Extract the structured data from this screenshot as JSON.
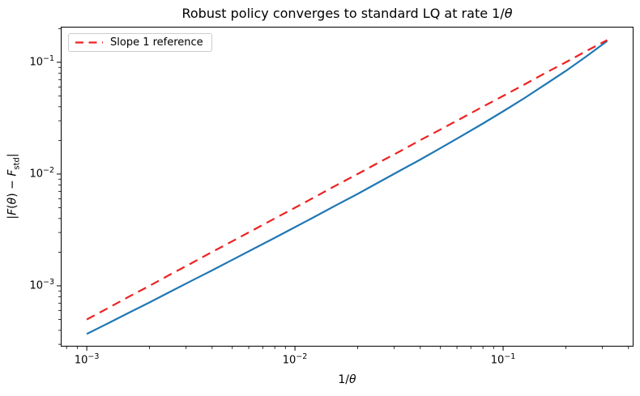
{
  "figure": {
    "background": "#ffffff",
    "frame_color": "#000000"
  },
  "chart_data": {
    "type": "line",
    "scale": "log-log",
    "grid": false,
    "title": "Robust policy converges to standard LQ at rate 1/θ",
    "title_parts": {
      "prefix": "Robust policy converges to standard LQ at rate 1/",
      "theta": "θ"
    },
    "xlabel": "1/θ",
    "xlabel_parts": {
      "prefix": "1/",
      "theta": "θ"
    },
    "ylabel": "|F(θ) − F_std|",
    "ylabel_parts": [
      {
        "text": "|"
      },
      {
        "text": "F",
        "italic": true
      },
      {
        "text": "("
      },
      {
        "text": "θ",
        "italic": true
      },
      {
        "text": ")"
      },
      {
        "text": " − "
      },
      {
        "text": "F",
        "italic": true
      },
      {
        "text": "std",
        "sub": true
      },
      {
        "text": "|"
      }
    ],
    "xlim": [
      0.00075,
      0.423
    ],
    "ylim": [
      0.000286,
      0.208
    ],
    "x": [
      0.001,
      0.00126,
      0.00158,
      0.002,
      0.00251,
      0.00316,
      0.00398,
      0.00501,
      0.00631,
      0.00794,
      0.01,
      0.0126,
      0.0158,
      0.02,
      0.0251,
      0.0316,
      0.0398,
      0.0501,
      0.0631,
      0.0794,
      0.1,
      0.126,
      0.158,
      0.2,
      0.251,
      0.316
    ],
    "series": [
      {
        "id": "policy-difference",
        "label": "",
        "color": "#1f77b4",
        "style": "solid",
        "width": 2.2,
        "values": [
          0.000371,
          0.00046,
          0.000571,
          0.00071,
          0.000883,
          0.0011,
          0.00137,
          0.00171,
          0.00214,
          0.00267,
          0.00335,
          0.0042,
          0.00527,
          0.00664,
          0.00838,
          0.0106,
          0.0134,
          0.0171,
          0.0219,
          0.0281,
          0.0364,
          0.0475,
          0.0627,
          0.0836,
          0.113,
          0.155
        ]
      },
      {
        "id": "slope-1-reference",
        "label": "Slope 1 reference",
        "color": "#ee2222",
        "style": "dashed",
        "width": 2.2,
        "values": [
          0.0005,
          0.00063,
          0.000794,
          0.001,
          0.00126,
          0.00158,
          0.002,
          0.00251,
          0.00316,
          0.00398,
          0.005,
          0.0063,
          0.00794,
          0.01,
          0.0126,
          0.0158,
          0.02,
          0.0251,
          0.0316,
          0.0398,
          0.05,
          0.063,
          0.0794,
          0.1,
          0.126,
          0.158
        ]
      }
    ],
    "x_ticks": [
      {
        "v": 0.001,
        "base": "10",
        "exp": "−3"
      },
      {
        "v": 0.01,
        "base": "10",
        "exp": "−2"
      },
      {
        "v": 0.1,
        "base": "10",
        "exp": "−1"
      }
    ],
    "y_ticks": [
      {
        "v": 0.1,
        "base": "10",
        "exp": "−1"
      },
      {
        "v": 0.01,
        "base": "10",
        "exp": "−2"
      },
      {
        "v": 0.001,
        "base": "10",
        "exp": "−3"
      }
    ],
    "legend": {
      "position": "upper-left",
      "entries": [
        "Slope 1 reference"
      ]
    }
  }
}
